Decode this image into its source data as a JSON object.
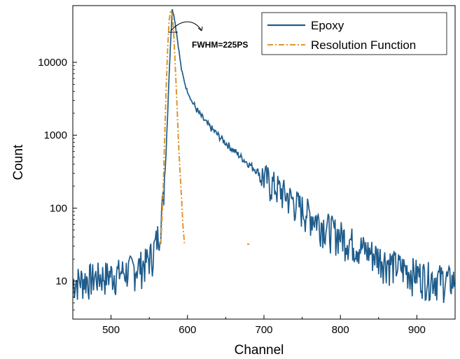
{
  "chart_data": {
    "type": "line",
    "xlabel": "Channel",
    "ylabel": "Count",
    "x_scale": "linear",
    "y_scale": "log",
    "xlim": [
      450,
      950
    ],
    "ylim": [
      3,
      60000
    ],
    "x_ticks": [
      500,
      600,
      700,
      800,
      900
    ],
    "x_tick_labels": [
      "500",
      "600",
      "700",
      "800",
      "900"
    ],
    "y_ticks": [
      10,
      100,
      1000,
      10000
    ],
    "y_tick_labels": [
      "10",
      "100",
      "1000",
      "10000"
    ],
    "grid": false,
    "legend_position": "top-right",
    "annotation": "FWHM=225PS",
    "series": [
      {
        "name": "Epoxy",
        "color": "#1f5c8b",
        "style": "solid",
        "x": [
          450,
          470,
          490,
          510,
          530,
          545,
          555,
          562,
          568,
          572,
          576,
          580,
          583,
          587,
          592,
          598,
          605,
          615,
          625,
          640,
          655,
          670,
          690,
          710,
          730,
          750,
          770,
          790,
          810,
          830,
          850,
          870,
          890,
          910,
          930,
          950
        ],
        "y": [
          10,
          11,
          12,
          13,
          15,
          18,
          25,
          45,
          120,
          600,
          7000,
          55000,
          40000,
          20000,
          8000,
          4500,
          3000,
          2000,
          1450,
          1000,
          700,
          500,
          330,
          220,
          150,
          100,
          70,
          50,
          38,
          28,
          22,
          17,
          14,
          12,
          11,
          10
        ]
      },
      {
        "name": "Resolution Function",
        "color": "#e0962a",
        "style": "dashdot",
        "x": [
          565,
          568,
          570,
          572,
          574,
          576,
          578,
          580,
          582,
          584,
          586,
          588,
          590,
          592,
          594,
          596
        ],
        "y": [
          32,
          150,
          800,
          4000,
          15000,
          38000,
          52000,
          45000,
          25000,
          9000,
          3000,
          900,
          350,
          150,
          60,
          33
        ]
      }
    ]
  }
}
